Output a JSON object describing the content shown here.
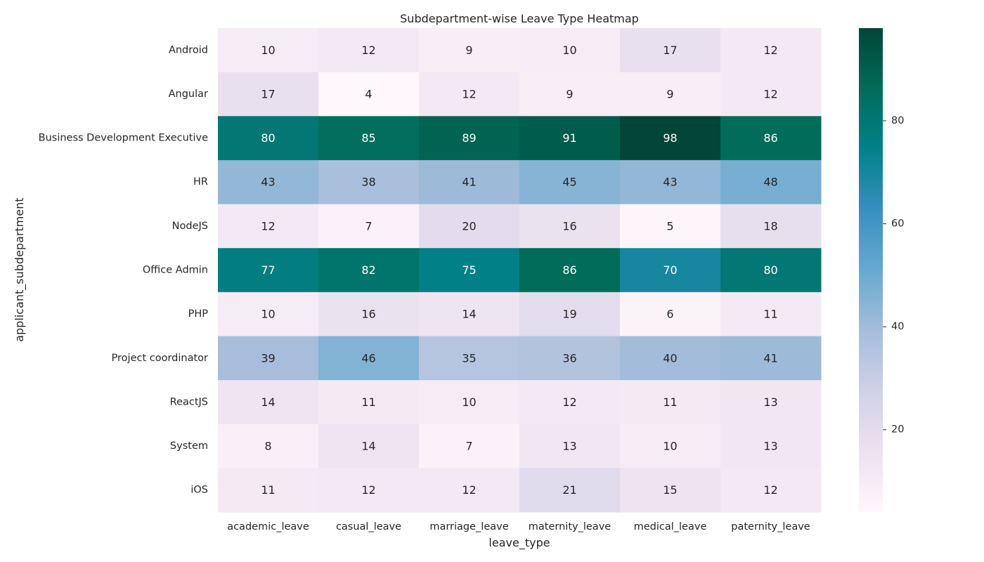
{
  "chart_data": {
    "type": "heatmap",
    "title": "Subdepartment-wise Leave Type Heatmap",
    "xlabel": "leave_type",
    "ylabel": "applicant_subdepartment",
    "columns": [
      "academic_leave",
      "casual_leave",
      "marriage_leave",
      "maternity_leave",
      "medical_leave",
      "paternity_leave"
    ],
    "rows": [
      "Android",
      "Angular",
      "Business Development Executive",
      "HR",
      "NodeJS",
      "Office Admin",
      "PHP",
      "Project coordinator",
      "ReactJS",
      "System",
      "iOS"
    ],
    "values": [
      [
        10,
        12,
        9,
        10,
        17,
        12
      ],
      [
        17,
        4,
        12,
        9,
        9,
        12
      ],
      [
        80,
        85,
        89,
        91,
        98,
        86
      ],
      [
        43,
        38,
        41,
        45,
        43,
        48
      ],
      [
        12,
        7,
        20,
        16,
        5,
        18
      ],
      [
        77,
        82,
        75,
        86,
        70,
        80
      ],
      [
        10,
        16,
        14,
        19,
        6,
        11
      ],
      [
        39,
        46,
        35,
        36,
        40,
        41
      ],
      [
        14,
        11,
        10,
        12,
        11,
        13
      ],
      [
        8,
        14,
        7,
        13,
        10,
        13
      ],
      [
        11,
        12,
        12,
        21,
        15,
        12
      ]
    ],
    "colormap": "PuBuGn",
    "colorbar": {
      "min": 4,
      "max": 98,
      "ticks": [
        20,
        40,
        60,
        80
      ]
    },
    "annotations": true,
    "grid": false
  }
}
